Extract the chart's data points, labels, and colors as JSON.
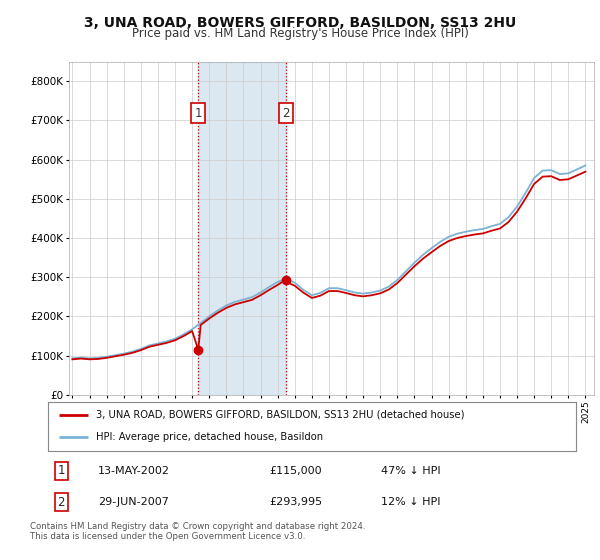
{
  "title_line1": "3, UNA ROAD, BOWERS GIFFORD, BASILDON, SS13 2HU",
  "title_line2": "Price paid vs. HM Land Registry's House Price Index (HPI)",
  "title_fontsize": 10,
  "subtitle_fontsize": 8.5,
  "background_color": "#ffffff",
  "grid_color": "#cccccc",
  "hpi_color": "#7ab3d4",
  "price_color": "#cc0000",
  "sale1_year": 2002.36,
  "sale1_price": 115000,
  "sale2_year": 2007.49,
  "sale2_price": 293995,
  "legend_line1": "3, UNA ROAD, BOWERS GIFFORD, BASILDON, SS13 2HU (detached house)",
  "legend_line2": "HPI: Average price, detached house, Basildon",
  "table_row1": [
    "1",
    "13-MAY-2002",
    "£115,000",
    "47% ↓ HPI"
  ],
  "table_row2": [
    "2",
    "29-JUN-2007",
    "£293,995",
    "12% ↓ HPI"
  ],
  "footnote": "Contains HM Land Registry data © Crown copyright and database right 2024.\nThis data is licensed under the Open Government Licence v3.0.",
  "ylim_max": 850000,
  "xlim_min": 1994.8,
  "xlim_max": 2025.5,
  "hpi_data": [
    [
      1995.0,
      93000
    ],
    [
      1995.5,
      95000
    ],
    [
      1996.0,
      93000
    ],
    [
      1996.5,
      94000
    ],
    [
      1997.0,
      97000
    ],
    [
      1997.5,
      101000
    ],
    [
      1998.0,
      105000
    ],
    [
      1998.5,
      110000
    ],
    [
      1999.0,
      117000
    ],
    [
      1999.5,
      126000
    ],
    [
      2000.0,
      131000
    ],
    [
      2000.5,
      136000
    ],
    [
      2001.0,
      143000
    ],
    [
      2001.5,
      154000
    ],
    [
      2002.0,
      167000
    ],
    [
      2002.5,
      183000
    ],
    [
      2003.0,
      200000
    ],
    [
      2003.5,
      215000
    ],
    [
      2004.0,
      228000
    ],
    [
      2004.5,
      237000
    ],
    [
      2005.0,
      243000
    ],
    [
      2005.5,
      249000
    ],
    [
      2006.0,
      261000
    ],
    [
      2006.5,
      275000
    ],
    [
      2007.0,
      288000
    ],
    [
      2007.5,
      296000
    ],
    [
      2008.0,
      286000
    ],
    [
      2008.5,
      268000
    ],
    [
      2009.0,
      254000
    ],
    [
      2009.5,
      260000
    ],
    [
      2010.0,
      272000
    ],
    [
      2010.5,
      272000
    ],
    [
      2011.0,
      267000
    ],
    [
      2011.5,
      261000
    ],
    [
      2012.0,
      258000
    ],
    [
      2012.5,
      261000
    ],
    [
      2013.0,
      266000
    ],
    [
      2013.5,
      276000
    ],
    [
      2014.0,
      293000
    ],
    [
      2014.5,
      315000
    ],
    [
      2015.0,
      337000
    ],
    [
      2015.5,
      357000
    ],
    [
      2016.0,
      374000
    ],
    [
      2016.5,
      390000
    ],
    [
      2017.0,
      403000
    ],
    [
      2017.5,
      411000
    ],
    [
      2018.0,
      416000
    ],
    [
      2018.5,
      420000
    ],
    [
      2019.0,
      423000
    ],
    [
      2019.5,
      430000
    ],
    [
      2020.0,
      436000
    ],
    [
      2020.5,
      453000
    ],
    [
      2021.0,
      480000
    ],
    [
      2021.5,
      515000
    ],
    [
      2022.0,
      553000
    ],
    [
      2022.5,
      572000
    ],
    [
      2023.0,
      573000
    ],
    [
      2023.5,
      563000
    ],
    [
      2024.0,
      565000
    ],
    [
      2024.5,
      575000
    ],
    [
      2025.0,
      585000
    ]
  ],
  "price_data_indexed": [
    [
      1995.0,
      90500
    ],
    [
      1995.5,
      92400
    ],
    [
      1996.0,
      90500
    ],
    [
      1996.5,
      91400
    ],
    [
      1997.0,
      94300
    ],
    [
      1997.5,
      98200
    ],
    [
      1998.0,
      102100
    ],
    [
      1998.5,
      107000
    ],
    [
      1999.0,
      113800
    ],
    [
      1999.5,
      122600
    ],
    [
      2000.0,
      127500
    ],
    [
      2000.5,
      132300
    ],
    [
      2001.0,
      139100
    ],
    [
      2001.5,
      149800
    ],
    [
      2002.0,
      162500
    ],
    [
      2002.36,
      115000
    ],
    [
      2002.5,
      178100
    ],
    [
      2003.0,
      194600
    ],
    [
      2003.5,
      209200
    ],
    [
      2004.0,
      221800
    ],
    [
      2004.5,
      230600
    ],
    [
      2005.0,
      236400
    ],
    [
      2005.5,
      242200
    ],
    [
      2006.0,
      253900
    ],
    [
      2006.5,
      267500
    ],
    [
      2007.0,
      280200
    ],
    [
      2007.49,
      293995
    ],
    [
      2007.5,
      288000
    ],
    [
      2008.0,
      278200
    ],
    [
      2008.5,
      260800
    ],
    [
      2009.0,
      247100
    ],
    [
      2009.5,
      252900
    ],
    [
      2010.0,
      264700
    ],
    [
      2010.5,
      264700
    ],
    [
      2011.0,
      259800
    ],
    [
      2011.5,
      254000
    ],
    [
      2012.0,
      251100
    ],
    [
      2012.5,
      254000
    ],
    [
      2013.0,
      258900
    ],
    [
      2013.5,
      268600
    ],
    [
      2014.0,
      285100
    ],
    [
      2014.5,
      306500
    ],
    [
      2015.0,
      327900
    ],
    [
      2015.5,
      347300
    ],
    [
      2016.0,
      363800
    ],
    [
      2016.5,
      379500
    ],
    [
      2017.0,
      392200
    ],
    [
      2017.5,
      400000
    ],
    [
      2018.0,
      404900
    ],
    [
      2018.5,
      408800
    ],
    [
      2019.0,
      411700
    ],
    [
      2019.5,
      418500
    ],
    [
      2020.0,
      424300
    ],
    [
      2020.5,
      440800
    ],
    [
      2021.0,
      467100
    ],
    [
      2021.5,
      501000
    ],
    [
      2022.0,
      538100
    ],
    [
      2022.5,
      556600
    ],
    [
      2023.0,
      557600
    ],
    [
      2023.5,
      547900
    ],
    [
      2024.0,
      549800
    ],
    [
      2024.5,
      559500
    ],
    [
      2025.0,
      569200
    ]
  ],
  "shaded_region": [
    2002.36,
    2007.49
  ],
  "xticks": [
    1995,
    1996,
    1997,
    1998,
    1999,
    2000,
    2001,
    2002,
    2003,
    2004,
    2005,
    2006,
    2007,
    2008,
    2009,
    2010,
    2011,
    2012,
    2013,
    2014,
    2015,
    2016,
    2017,
    2018,
    2019,
    2020,
    2021,
    2022,
    2023,
    2024,
    2025
  ]
}
